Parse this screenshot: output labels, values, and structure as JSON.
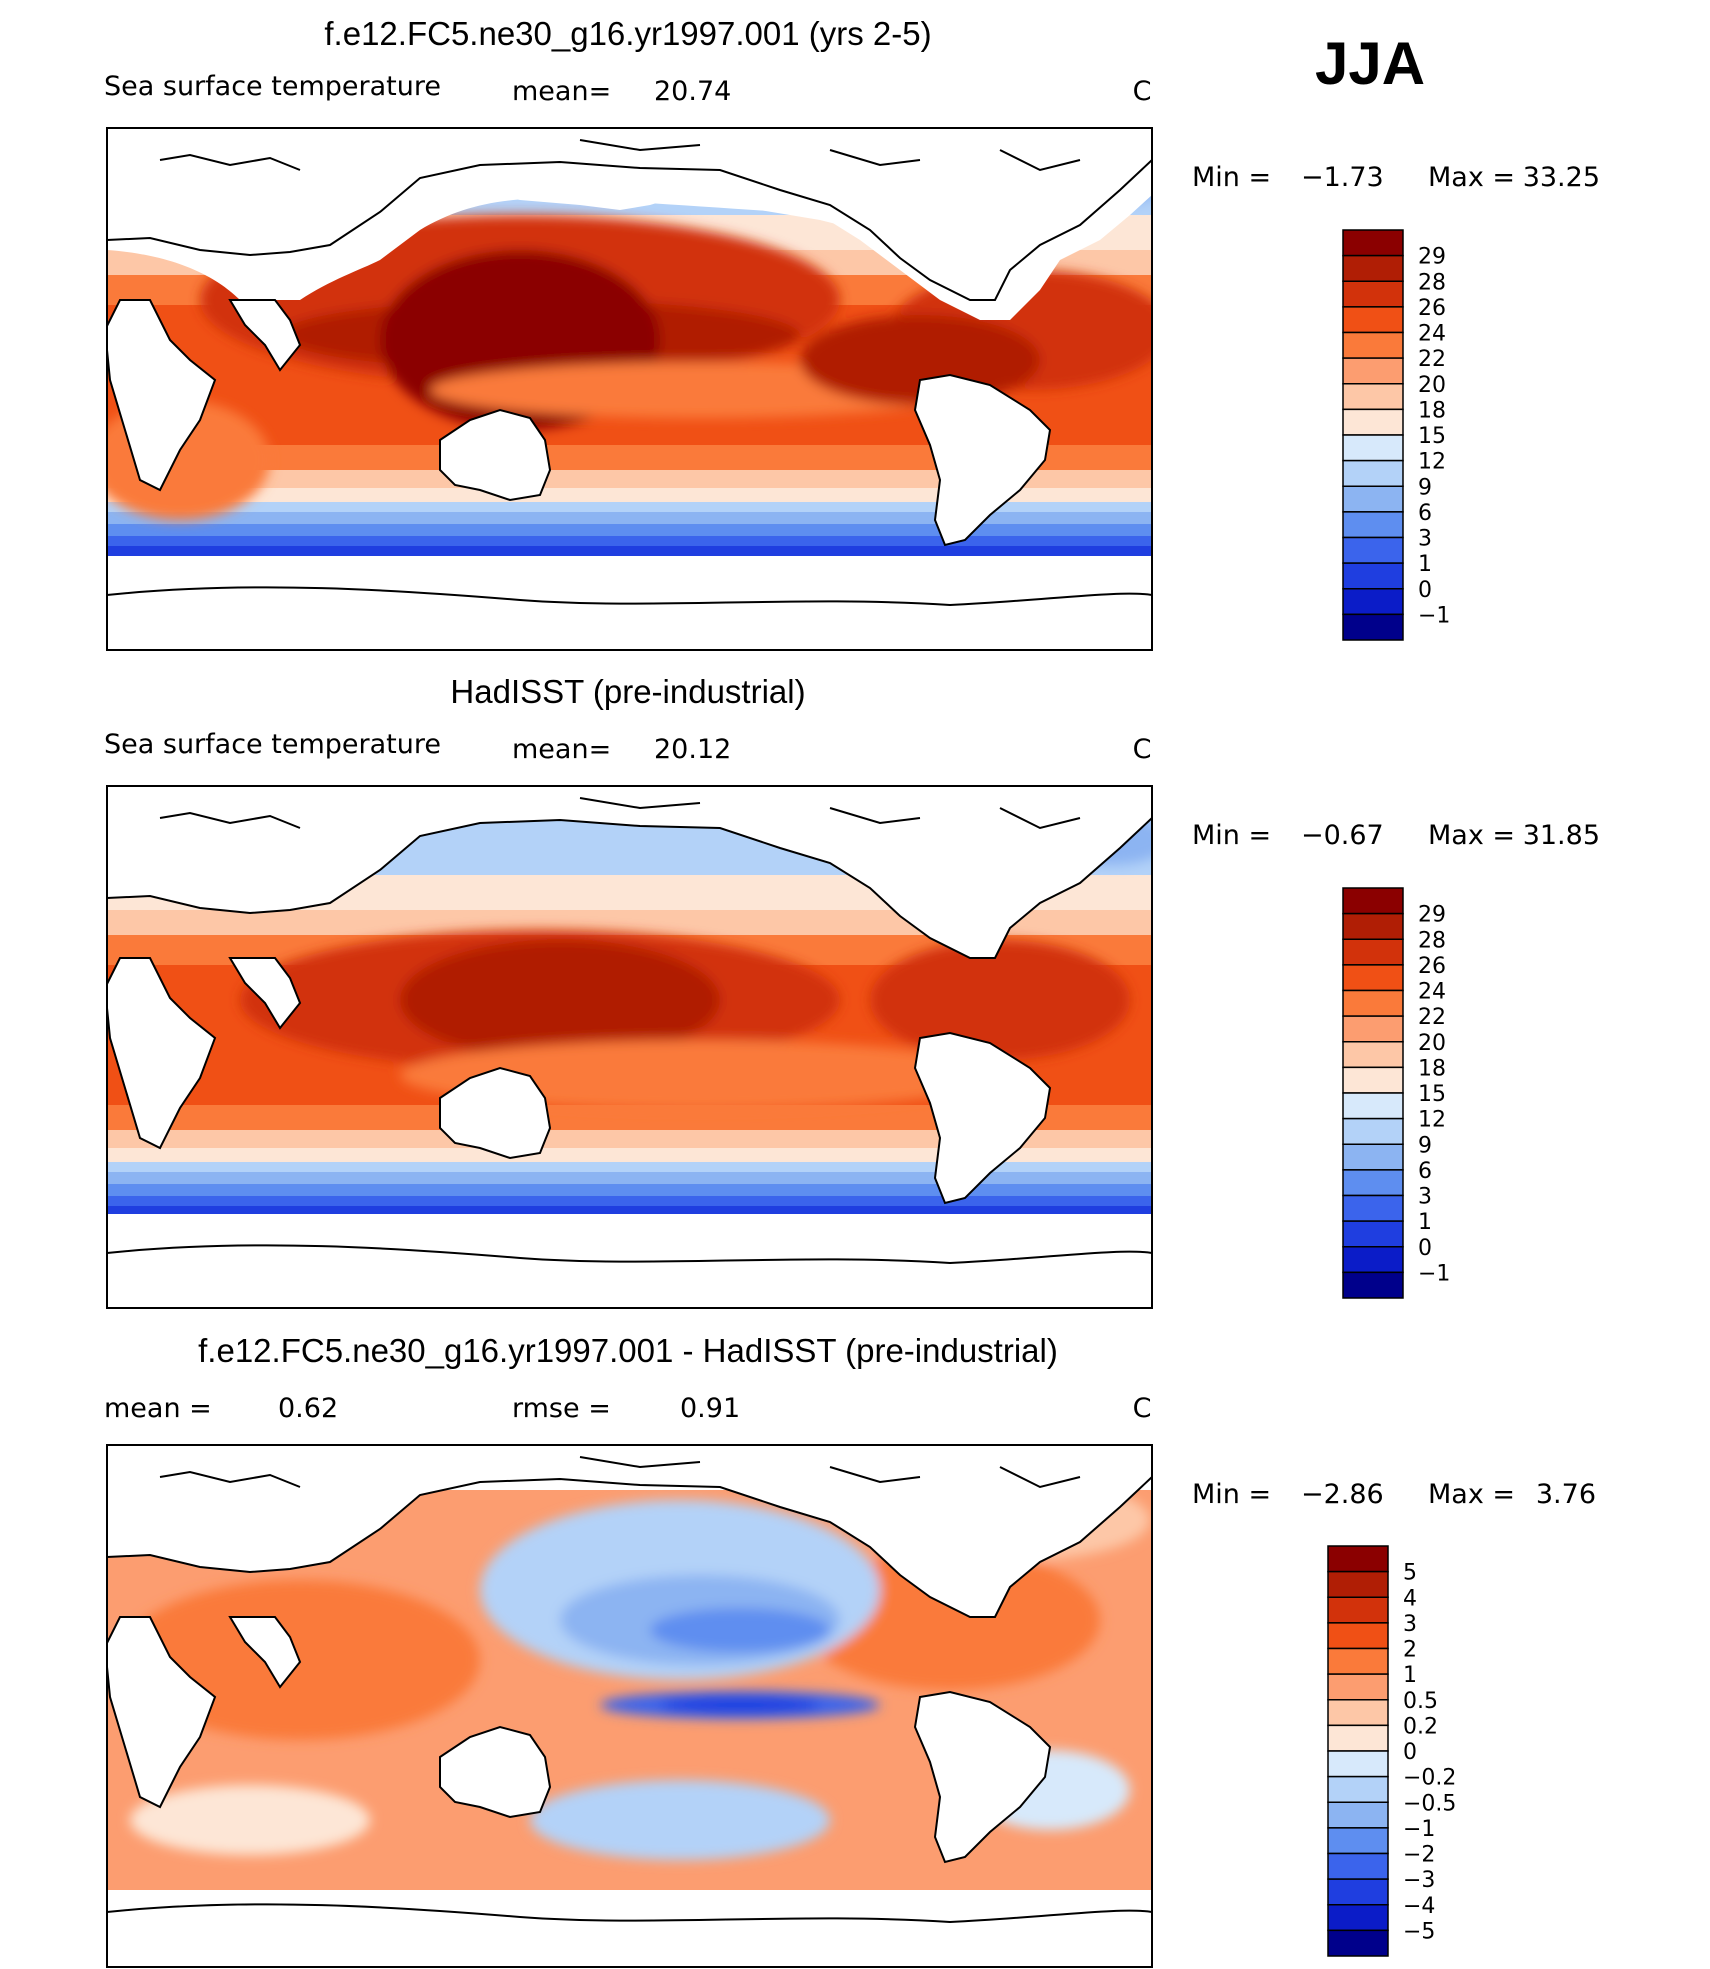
{
  "season": "JJA",
  "chart_data": [
    {
      "type": "heatmap",
      "title": "f.e12.FC5.ne30_g16.yr1997.001 (yrs 2-5)",
      "variable": "Sea surface temperature",
      "mean_label": "mean=",
      "mean": "20.74",
      "units": "C",
      "min_label": "Min =",
      "min": "−1.73",
      "max_label": "Max =",
      "max": "33.25",
      "colorbar_ticks": [
        "29",
        "28",
        "26",
        "24",
        "22",
        "20",
        "18",
        "15",
        "12",
        "9",
        "6",
        "3",
        "1",
        "0",
        "−1"
      ],
      "colorbar_colors": [
        "#8b0000",
        "#b01e05",
        "#d2320b",
        "#f05015",
        "#fa7a3a",
        "#fc9d70",
        "#fdc7a7",
        "#fde6d6",
        "#d7e9fb",
        "#b3d2f8",
        "#8cb4f2",
        "#5e8ef0",
        "#3b64ec",
        "#1f3ee0",
        "#0b1cc8",
        "#00008b"
      ],
      "projection": "global lat-lon, centered 180°, land masked white"
    },
    {
      "type": "heatmap",
      "title": "HadISST (pre-industrial)",
      "variable": "Sea surface temperature",
      "mean_label": "mean=",
      "mean": "20.12",
      "units": "C",
      "min_label": "Min =",
      "min": "−0.67",
      "max_label": "Max =",
      "max": "31.85",
      "colorbar_ticks": [
        "29",
        "28",
        "26",
        "24",
        "22",
        "20",
        "18",
        "15",
        "12",
        "9",
        "6",
        "3",
        "1",
        "0",
        "−1"
      ],
      "colorbar_colors": [
        "#8b0000",
        "#b01e05",
        "#d2320b",
        "#f05015",
        "#fa7a3a",
        "#fc9d70",
        "#fdc7a7",
        "#fde6d6",
        "#d7e9fb",
        "#b3d2f8",
        "#8cb4f2",
        "#5e8ef0",
        "#3b64ec",
        "#1f3ee0",
        "#0b1cc8",
        "#00008b"
      ],
      "projection": "global lat-lon, centered 180°, land masked white"
    },
    {
      "type": "heatmap",
      "title": "f.e12.FC5.ne30_g16.yr1997.001 - HadISST (pre-industrial)",
      "mean_label": "mean =",
      "mean": "0.62",
      "rmse_label": "rmse =",
      "rmse": "0.91",
      "units": "C",
      "min_label": "Min =",
      "min": "−2.86",
      "max_label": "Max =",
      "max": "3.76",
      "colorbar_ticks": [
        "5",
        "4",
        "3",
        "2",
        "1",
        "0.5",
        "0.2",
        "0",
        "−0.2",
        "−0.5",
        "−1",
        "−2",
        "−3",
        "−4",
        "−5"
      ],
      "colorbar_colors": [
        "#8b0000",
        "#b01e05",
        "#d2320b",
        "#f05015",
        "#fa7a3a",
        "#fc9d70",
        "#fdc7a7",
        "#fde6d6",
        "#d7e9fb",
        "#b3d2f8",
        "#8cb4f2",
        "#5e8ef0",
        "#3b64ec",
        "#1f3ee0",
        "#0b1cc8",
        "#00008b"
      ],
      "projection": "global lat-lon, centered 180°, land masked white"
    }
  ]
}
